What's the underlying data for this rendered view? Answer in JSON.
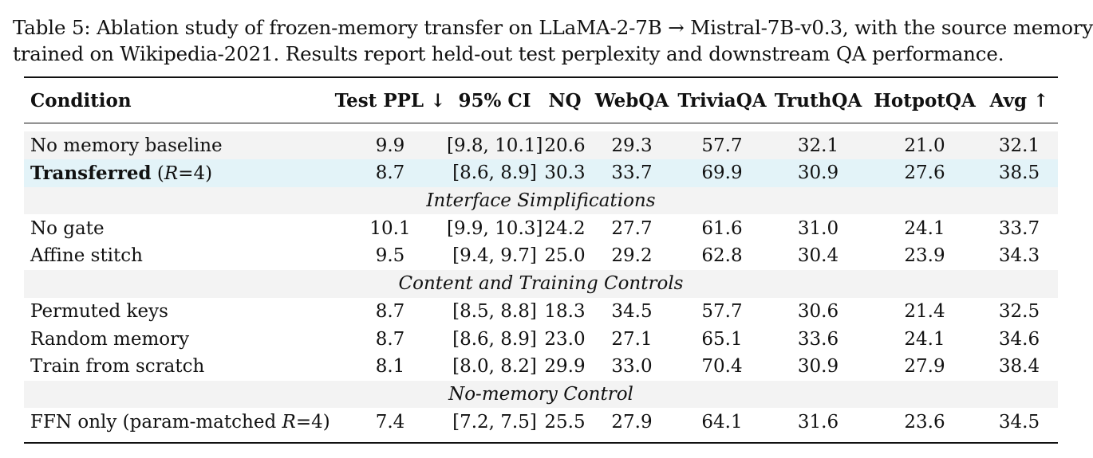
{
  "caption": {
    "line1": "Table 5: Ablation study of frozen-memory transfer on LLaMA-2-7B → Mistral-7B-v0.3, with the source memory",
    "line2": "trained on Wikipedia-2021. Results report held-out test perplexity and downstream QA performance."
  },
  "table": {
    "headers": [
      "Condition",
      "Test PPL ↓",
      "95% CI",
      "NQ",
      "WebQA",
      "TriviaQA",
      "TruthQA",
      "HotpotQA",
      "Avg ↑"
    ],
    "rows": {
      "baseline": {
        "condition": "No memory baseline",
        "ppl": "9.9",
        "ci": "[9.8, 10.1]",
        "nq": "20.6",
        "webqa": "29.3",
        "triviaqa": "57.7",
        "truthqa": "32.1",
        "hotpotqa": "21.0",
        "avg": "32.1"
      },
      "transferred": {
        "condition_bold": "Transferred",
        "condition_open": " (",
        "condition_r": "R",
        "condition_rest": "=4)",
        "ppl": "8.7",
        "ci": "[8.6, 8.9]",
        "nq": "30.3",
        "webqa": "33.7",
        "triviaqa": "69.9",
        "truthqa": "30.9",
        "hotpotqa": "27.6",
        "avg": "38.5"
      },
      "section_interface": "Interface Simplifications",
      "no_gate": {
        "condition": "No gate",
        "ppl": "10.1",
        "ci": "[9.9, 10.3]",
        "nq": "24.2",
        "webqa": "27.7",
        "triviaqa": "61.6",
        "truthqa": "31.0",
        "hotpotqa": "24.1",
        "avg": "33.7"
      },
      "affine": {
        "condition": "Affine stitch",
        "ppl": "9.5",
        "ci": "[9.4, 9.7]",
        "nq": "25.0",
        "webqa": "29.2",
        "triviaqa": "62.8",
        "truthqa": "30.4",
        "hotpotqa": "23.9",
        "avg": "34.3"
      },
      "section_content": "Content and Training Controls",
      "permuted": {
        "condition": "Permuted keys",
        "ppl": "8.7",
        "ci": "[8.5, 8.8]",
        "nq": "18.3",
        "webqa": "34.5",
        "triviaqa": "57.7",
        "truthqa": "30.6",
        "hotpotqa": "21.4",
        "avg": "32.5"
      },
      "random": {
        "condition": "Random memory",
        "ppl": "8.7",
        "ci": "[8.6, 8.9]",
        "nq": "23.0",
        "webqa": "27.1",
        "triviaqa": "65.1",
        "truthqa": "33.6",
        "hotpotqa": "24.1",
        "avg": "34.6"
      },
      "scratch": {
        "condition": "Train from scratch",
        "ppl": "8.1",
        "ci": "[8.0, 8.2]",
        "nq": "29.9",
        "webqa": "33.0",
        "triviaqa": "70.4",
        "truthqa": "30.9",
        "hotpotqa": "27.9",
        "avg": "38.4"
      },
      "section_nomem": "No-memory Control",
      "ffn": {
        "condition_pre": "FFN only (param-matched ",
        "condition_r": "R",
        "condition_rest": "=4)",
        "ppl": "7.4",
        "ci": "[7.2, 7.5]",
        "nq": "25.5",
        "webqa": "27.9",
        "triviaqa": "64.1",
        "truthqa": "31.6",
        "hotpotqa": "23.6",
        "avg": "34.5"
      }
    }
  }
}
